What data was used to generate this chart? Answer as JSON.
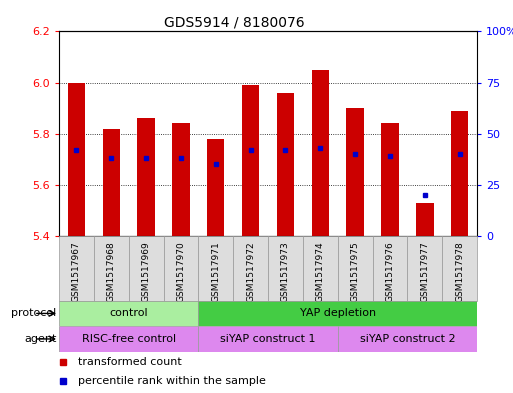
{
  "title": "GDS5914 / 8180076",
  "samples": [
    "GSM1517967",
    "GSM1517968",
    "GSM1517969",
    "GSM1517970",
    "GSM1517971",
    "GSM1517972",
    "GSM1517973",
    "GSM1517974",
    "GSM1517975",
    "GSM1517976",
    "GSM1517977",
    "GSM1517978"
  ],
  "bar_values": [
    6.0,
    5.82,
    5.86,
    5.84,
    5.78,
    5.99,
    5.96,
    6.05,
    5.9,
    5.84,
    5.53,
    5.89
  ],
  "percentile_values": [
    42,
    38,
    38,
    38,
    35,
    42,
    42,
    43,
    40,
    39,
    20,
    40
  ],
  "ylim_left": [
    5.4,
    6.2
  ],
  "ylim_right": [
    0,
    100
  ],
  "yticks_left": [
    5.4,
    5.6,
    5.8,
    6.0,
    6.2
  ],
  "yticks_right": [
    0,
    25,
    50,
    75,
    100
  ],
  "bar_color": "#CC0000",
  "percentile_color": "#0000CC",
  "bar_width": 0.5,
  "protocol_row_color_control": "#AAEEA0",
  "protocol_row_color_yap": "#44CC44",
  "agent_row_color": "#DD88EE",
  "legend_red_label": "transformed count",
  "legend_blue_label": "percentile rank within the sample",
  "right_axis_color": "blue",
  "left_axis_color": "red",
  "title_fontsize": 10,
  "tick_fontsize": 8,
  "sample_fontsize": 6.5
}
